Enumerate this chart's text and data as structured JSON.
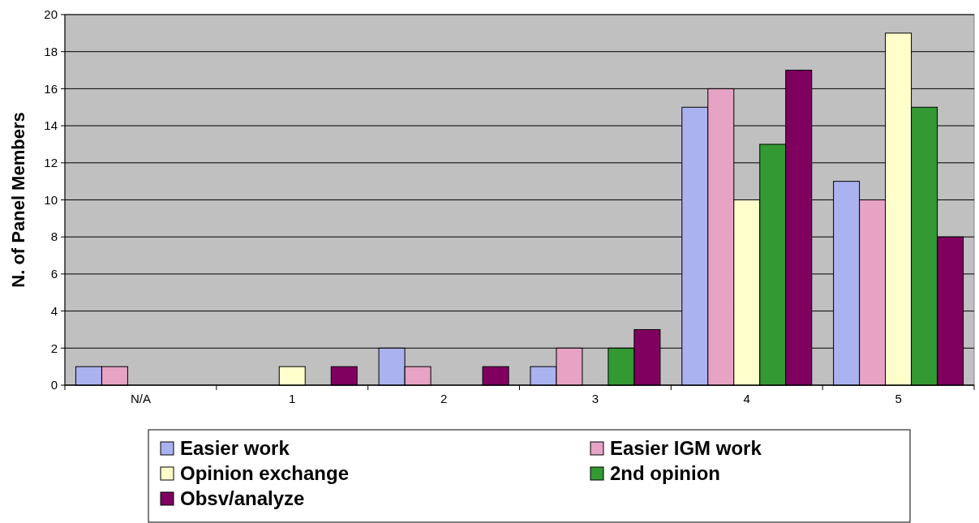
{
  "chart_data": {
    "type": "bar",
    "ylabel": "N. of Panel Members",
    "categories": [
      "N/A",
      "1",
      "2",
      "3",
      "4",
      "5"
    ],
    "series": [
      {
        "name": "Easier work",
        "color": "#aab2f0",
        "values": [
          1,
          0,
          2,
          1,
          15,
          11
        ]
      },
      {
        "name": "Easier IGM work",
        "color": "#e6a3c3",
        "values": [
          1,
          0,
          1,
          2,
          16,
          10
        ]
      },
      {
        "name": "Opinion exchange",
        "color": "#ffffcc",
        "values": [
          0,
          1,
          0,
          0,
          10,
          19
        ]
      },
      {
        "name": "2nd opinion",
        "color": "#339933",
        "values": [
          0,
          0,
          0,
          2,
          13,
          15
        ]
      },
      {
        "name": "Obsv/analyze",
        "color": "#800060",
        "values": [
          0,
          1,
          1,
          3,
          17,
          8
        ]
      }
    ],
    "ylim": [
      0,
      20
    ],
    "yticks": [
      0,
      2,
      4,
      6,
      8,
      10,
      12,
      14,
      16,
      18,
      20
    ],
    "grid": "y",
    "legend": "bottom"
  }
}
